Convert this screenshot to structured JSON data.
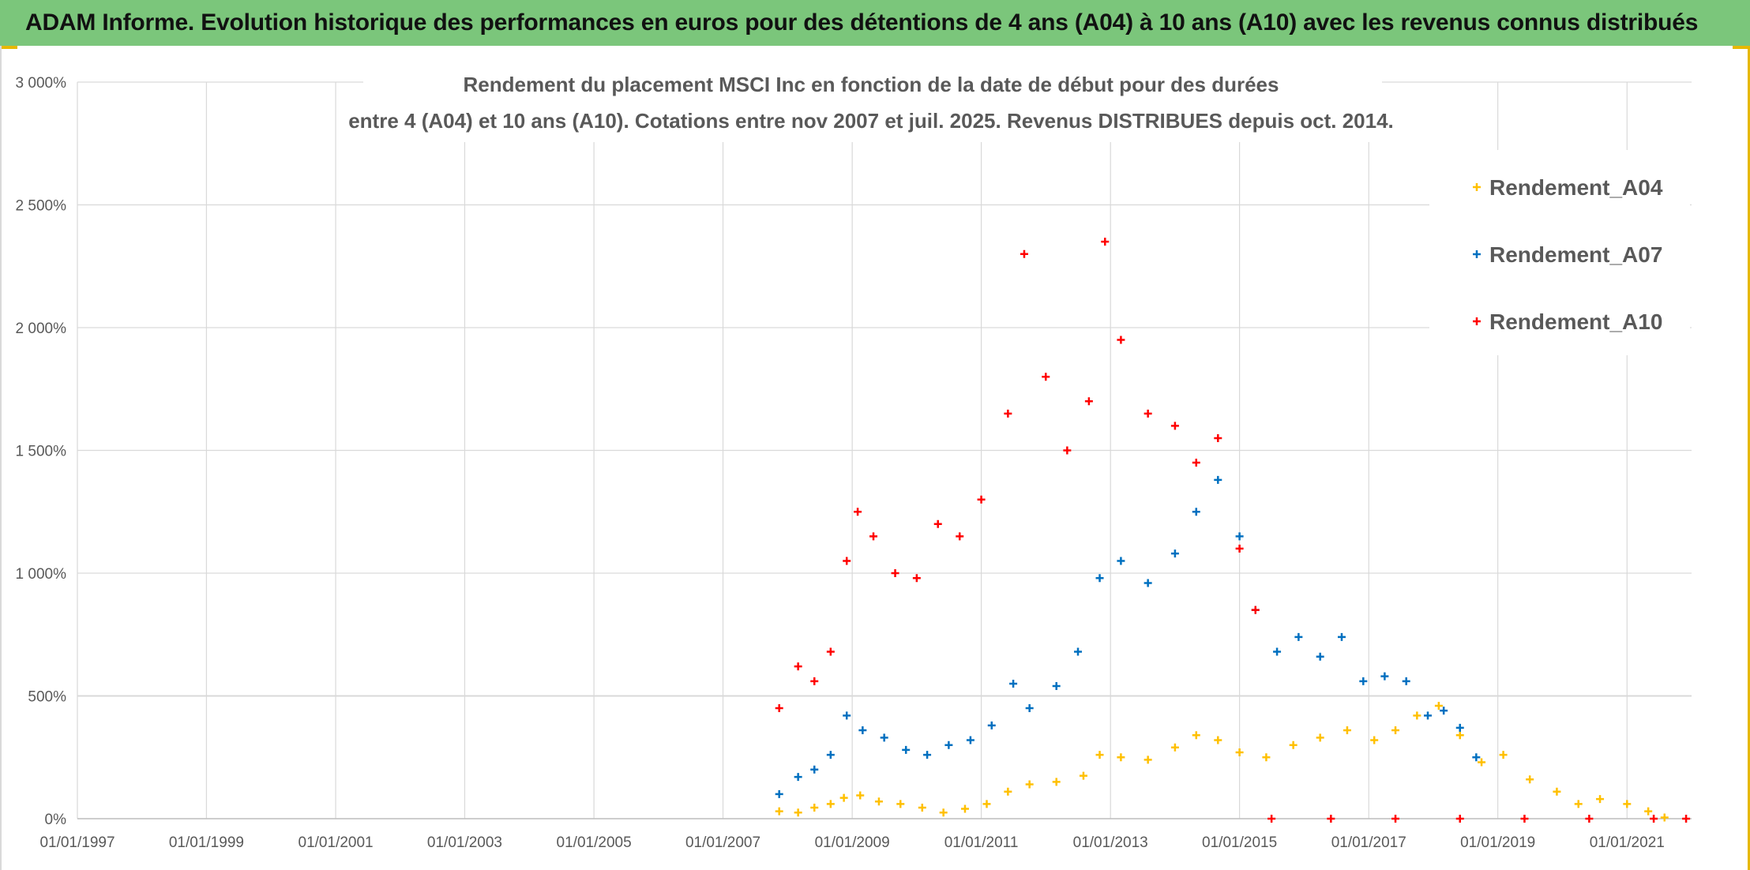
{
  "page_title": "ADAM Informe. Evolution historique des performances en euros pour des détentions de 4 ans (A04) à 10 ans (A10) avec les revenus connus distribués",
  "colors": {
    "banner": "#7bc67b",
    "grid": "#d9d9d9",
    "axis_text": "#595959",
    "A04": "#ffc000",
    "A07": "#0070c0",
    "A10": "#ff0000"
  },
  "chart_data": {
    "type": "scatter",
    "title": [
      "Rendement du placement MSCI Inc en fonction de la date de début pour des durées",
      "entre 4 (A04) et 10 ans (A10). Cotations entre nov 2007 et juil. 2025. Revenus DISTRIBUES depuis oct. 2014."
    ],
    "xlabel": "",
    "ylabel": "",
    "x_range": [
      "1997-01-01",
      "2022-01-01"
    ],
    "ylim": [
      0,
      3000
    ],
    "y_ticks": [
      0,
      500,
      1000,
      1500,
      2000,
      2500,
      3000
    ],
    "y_tick_labels": [
      "0%",
      "500%",
      "1 000%",
      "1 500%",
      "2 000%",
      "2 500%",
      "3 000%"
    ],
    "x_tick_labels": [
      "01/01/1997",
      "01/01/1999",
      "01/01/2001",
      "01/01/2003",
      "01/01/2005",
      "01/01/2007",
      "01/01/2009",
      "01/01/2011",
      "01/01/2013",
      "01/01/2015",
      "01/01/2017",
      "01/01/2019",
      "01/01/2021"
    ],
    "grid": true,
    "legend_position": "top-right",
    "marker": "+",
    "series": [
      {
        "name": "Rendement_A04",
        "color": "#ffc000",
        "points": [
          [
            "2007-11-15",
            30
          ],
          [
            "2008-03-01",
            25
          ],
          [
            "2008-06-01",
            45
          ],
          [
            "2008-09-01",
            60
          ],
          [
            "2008-11-15",
            85
          ],
          [
            "2009-02-15",
            95
          ],
          [
            "2009-06-01",
            70
          ],
          [
            "2009-10-01",
            60
          ],
          [
            "2010-02-01",
            45
          ],
          [
            "2010-06-01",
            25
          ],
          [
            "2010-10-01",
            40
          ],
          [
            "2011-02-01",
            60
          ],
          [
            "2011-06-01",
            110
          ],
          [
            "2011-10-01",
            140
          ],
          [
            "2012-03-01",
            150
          ],
          [
            "2012-08-01",
            175
          ],
          [
            "2012-11-01",
            260
          ],
          [
            "2013-03-01",
            250
          ],
          [
            "2013-08-01",
            240
          ],
          [
            "2014-01-01",
            290
          ],
          [
            "2014-05-01",
            340
          ],
          [
            "2014-09-01",
            320
          ],
          [
            "2015-01-01",
            270
          ],
          [
            "2015-06-01",
            250
          ],
          [
            "2015-11-01",
            300
          ],
          [
            "2016-04-01",
            330
          ],
          [
            "2016-09-01",
            360
          ],
          [
            "2017-02-01",
            320
          ],
          [
            "2017-06-01",
            360
          ],
          [
            "2017-10-01",
            420
          ],
          [
            "2018-02-01",
            460
          ],
          [
            "2018-06-01",
            340
          ],
          [
            "2018-10-01",
            230
          ],
          [
            "2019-02-01",
            260
          ],
          [
            "2019-07-01",
            160
          ],
          [
            "2019-12-01",
            110
          ],
          [
            "2020-04-01",
            60
          ],
          [
            "2020-08-01",
            80
          ],
          [
            "2021-01-01",
            60
          ],
          [
            "2021-05-01",
            30
          ],
          [
            "2021-08-01",
            5
          ]
        ]
      },
      {
        "name": "Rendement_A07",
        "color": "#0070c0",
        "points": [
          [
            "2007-11-15",
            100
          ],
          [
            "2008-03-01",
            170
          ],
          [
            "2008-06-01",
            200
          ],
          [
            "2008-09-01",
            260
          ],
          [
            "2008-12-01",
            420
          ],
          [
            "2009-03-01",
            360
          ],
          [
            "2009-07-01",
            330
          ],
          [
            "2009-11-01",
            280
          ],
          [
            "2010-03-01",
            260
          ],
          [
            "2010-07-01",
            300
          ],
          [
            "2010-11-01",
            320
          ],
          [
            "2011-03-01",
            380
          ],
          [
            "2011-07-01",
            550
          ],
          [
            "2011-10-01",
            450
          ],
          [
            "2012-03-01",
            540
          ],
          [
            "2012-07-01",
            680
          ],
          [
            "2012-11-01",
            980
          ],
          [
            "2013-03-01",
            1050
          ],
          [
            "2013-08-01",
            960
          ],
          [
            "2014-01-01",
            1080
          ],
          [
            "2014-05-01",
            1250
          ],
          [
            "2014-09-01",
            1380
          ],
          [
            "2015-01-01",
            1150
          ],
          [
            "2015-04-01",
            850
          ],
          [
            "2015-08-01",
            680
          ],
          [
            "2015-12-01",
            740
          ],
          [
            "2016-04-01",
            660
          ],
          [
            "2016-08-01",
            740
          ],
          [
            "2016-12-01",
            560
          ],
          [
            "2017-04-01",
            580
          ],
          [
            "2017-08-01",
            560
          ],
          [
            "2017-12-01",
            420
          ],
          [
            "2018-03-01",
            440
          ],
          [
            "2018-06-01",
            370
          ],
          [
            "2018-09-01",
            250
          ]
        ]
      },
      {
        "name": "Rendement_A10",
        "color": "#ff0000",
        "points": [
          [
            "2007-11-15",
            450
          ],
          [
            "2008-03-01",
            620
          ],
          [
            "2008-06-01",
            560
          ],
          [
            "2008-09-01",
            680
          ],
          [
            "2008-12-01",
            1050
          ],
          [
            "2009-02-01",
            1250
          ],
          [
            "2009-05-01",
            1150
          ],
          [
            "2009-09-01",
            1000
          ],
          [
            "2010-01-01",
            980
          ],
          [
            "2010-05-01",
            1200
          ],
          [
            "2010-09-01",
            1150
          ],
          [
            "2011-01-01",
            1300
          ],
          [
            "2011-06-01",
            1650
          ],
          [
            "2011-09-01",
            2300
          ],
          [
            "2012-01-01",
            1800
          ],
          [
            "2012-05-01",
            1500
          ],
          [
            "2012-09-01",
            1700
          ],
          [
            "2012-12-01",
            2350
          ],
          [
            "2013-03-01",
            1950
          ],
          [
            "2013-08-01",
            1650
          ],
          [
            "2014-01-01",
            1600
          ],
          [
            "2014-05-01",
            1450
          ],
          [
            "2014-09-01",
            1550
          ],
          [
            "2015-01-01",
            1100
          ],
          [
            "2015-04-01",
            850
          ],
          [
            "2015-07-01",
            0
          ],
          [
            "2016-06-01",
            0
          ],
          [
            "2017-06-01",
            0
          ],
          [
            "2018-06-01",
            0
          ],
          [
            "2019-06-01",
            0
          ],
          [
            "2020-06-01",
            0
          ],
          [
            "2021-06-01",
            0
          ],
          [
            "2021-12-01",
            0
          ]
        ]
      }
    ]
  }
}
